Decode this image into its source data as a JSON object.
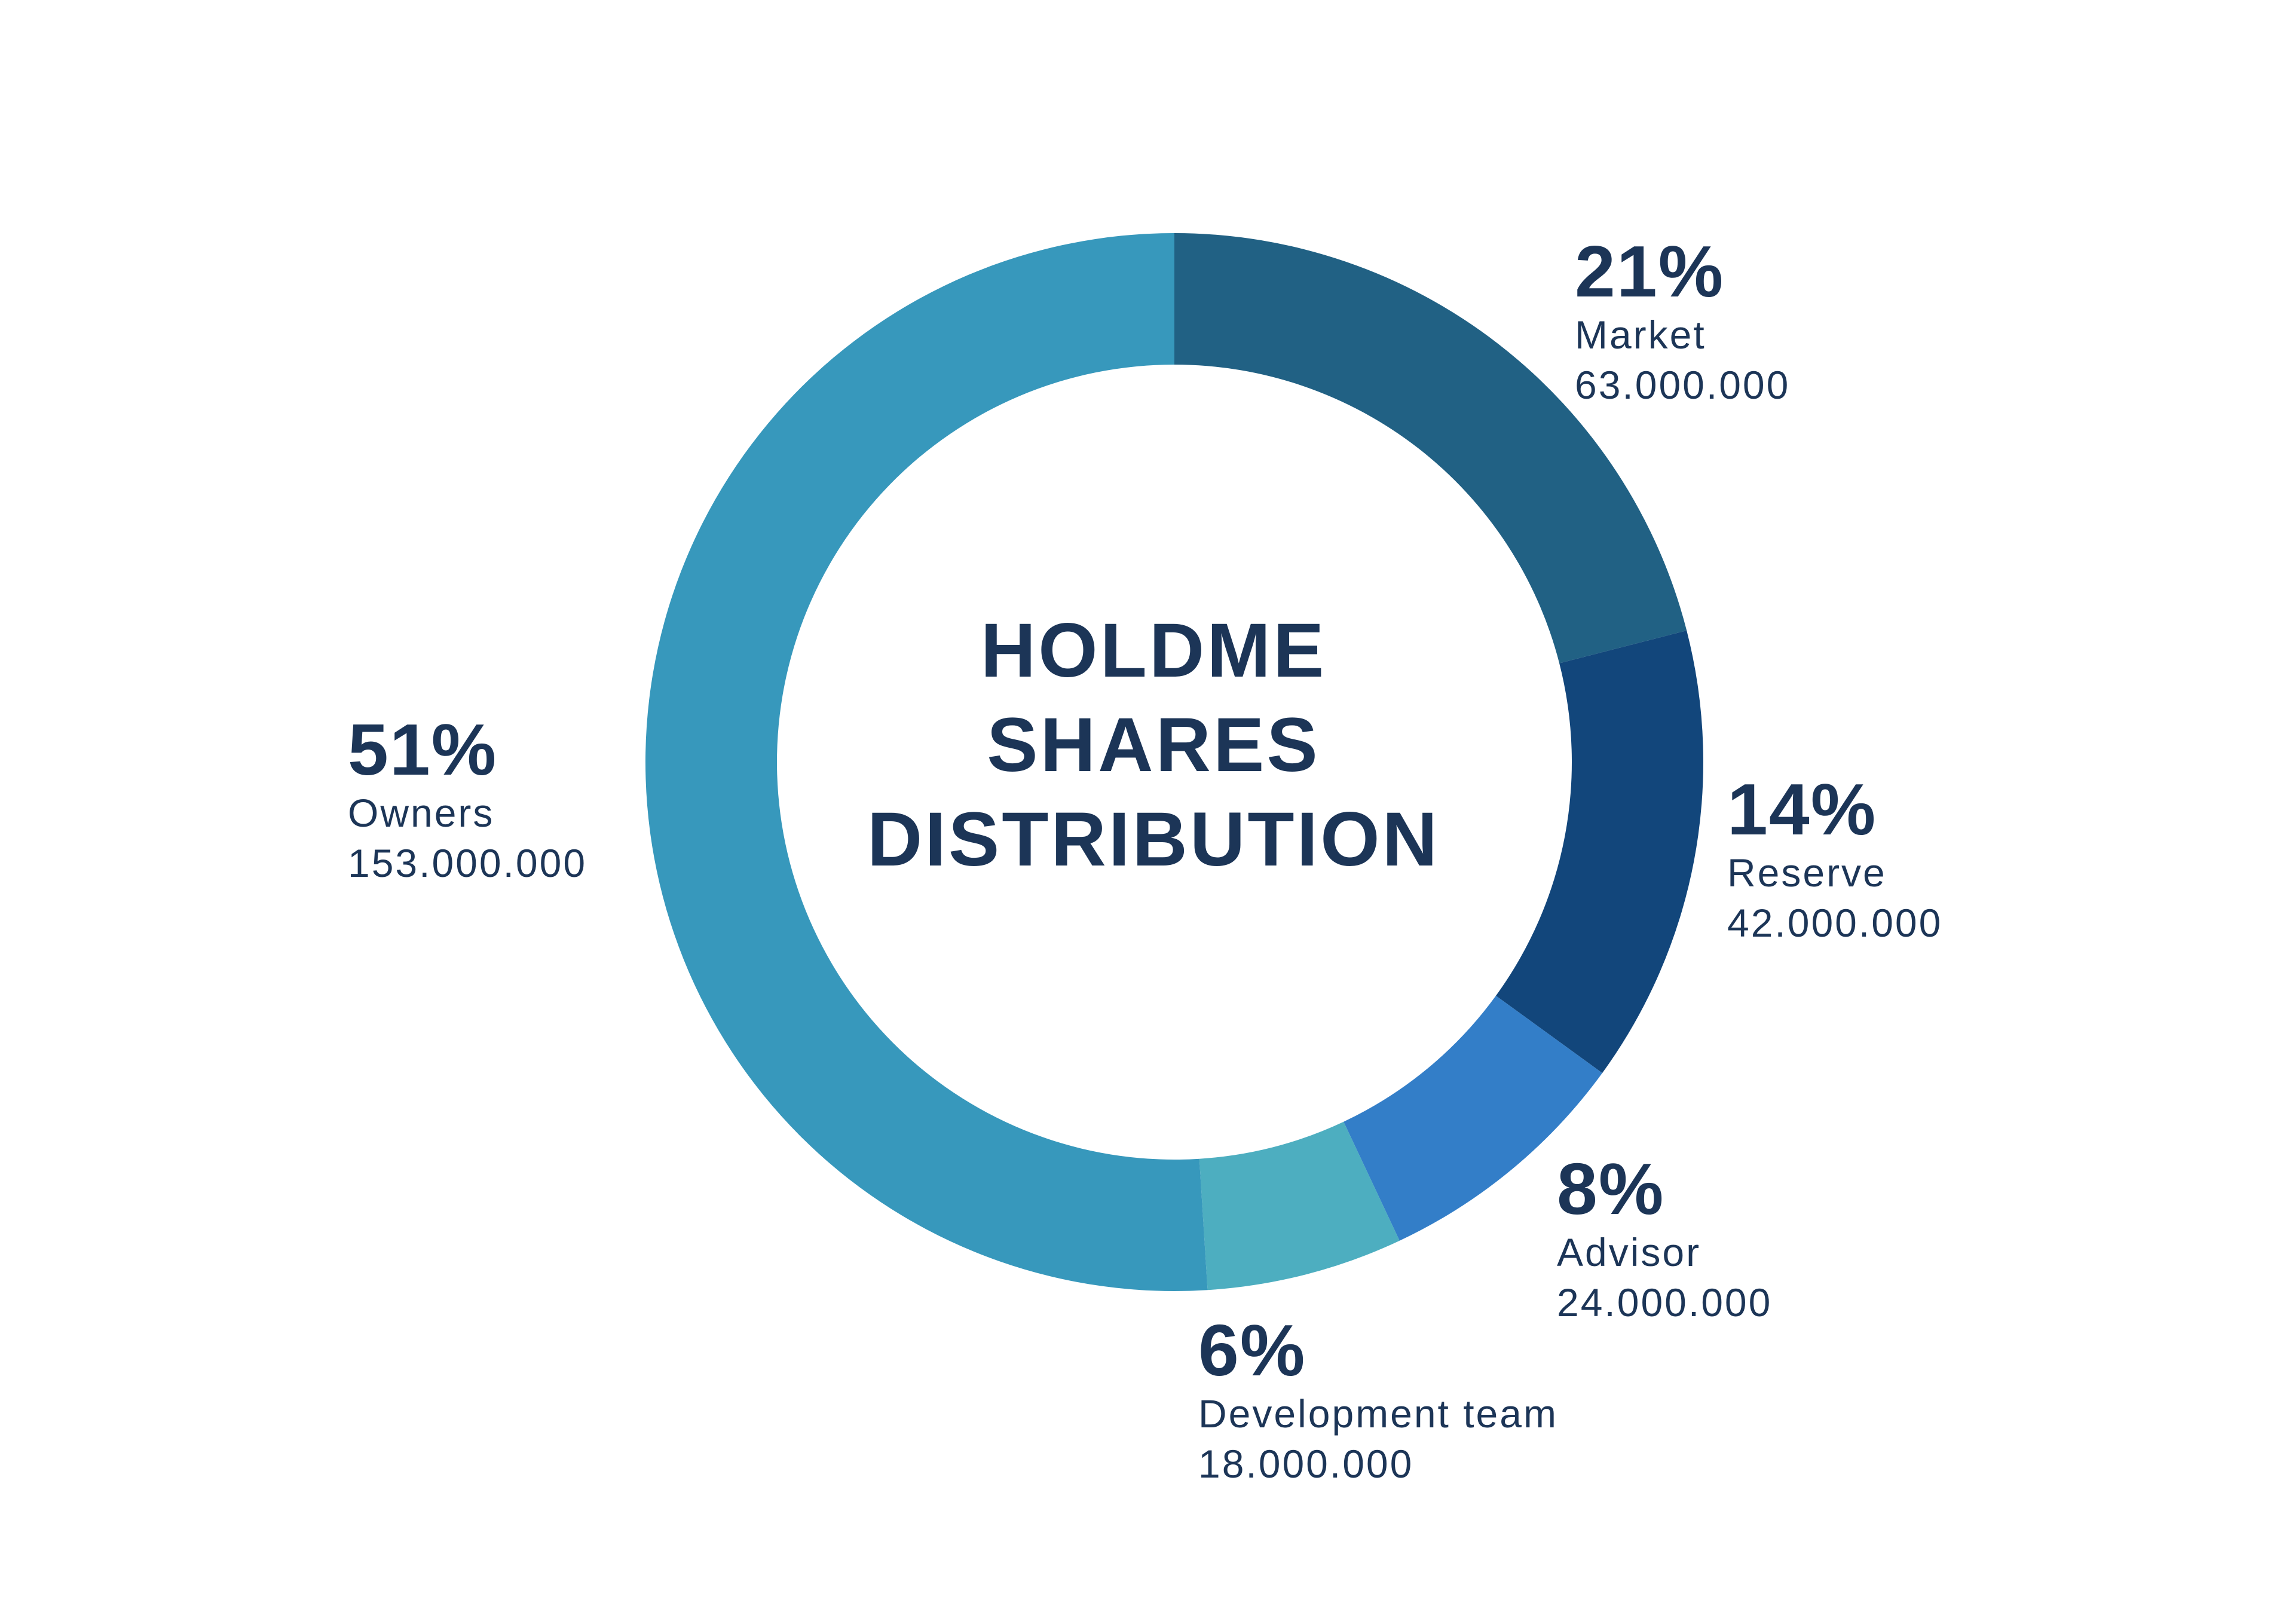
{
  "chart_data": {
    "type": "pie",
    "title_lines": [
      "HOLDME",
      "SHARES",
      "DISTRIBUTION"
    ],
    "slices": [
      {
        "label": "Market",
        "percent": 21,
        "pct_text": "21%",
        "value_text": "63.000.000",
        "value": 63000000,
        "color": "#216184"
      },
      {
        "label": "Reserve",
        "percent": 14,
        "pct_text": "14%",
        "value_text": "42.000.000",
        "value": 42000000,
        "color": "#12467b"
      },
      {
        "label": "Advisor",
        "percent": 8,
        "pct_text": "8%",
        "value_text": "24.000.000",
        "value": 24000000,
        "color": "#337ec8"
      },
      {
        "label": "Development team",
        "percent": 6,
        "pct_text": "6%",
        "value_text": "18.000.000",
        "value": 18000000,
        "color": "#4daec0"
      },
      {
        "label": "Owners",
        "percent": 51,
        "pct_text": "51%",
        "value_text": "153.000.000",
        "value": 153000000,
        "color": "#3798bc"
      }
    ]
  }
}
